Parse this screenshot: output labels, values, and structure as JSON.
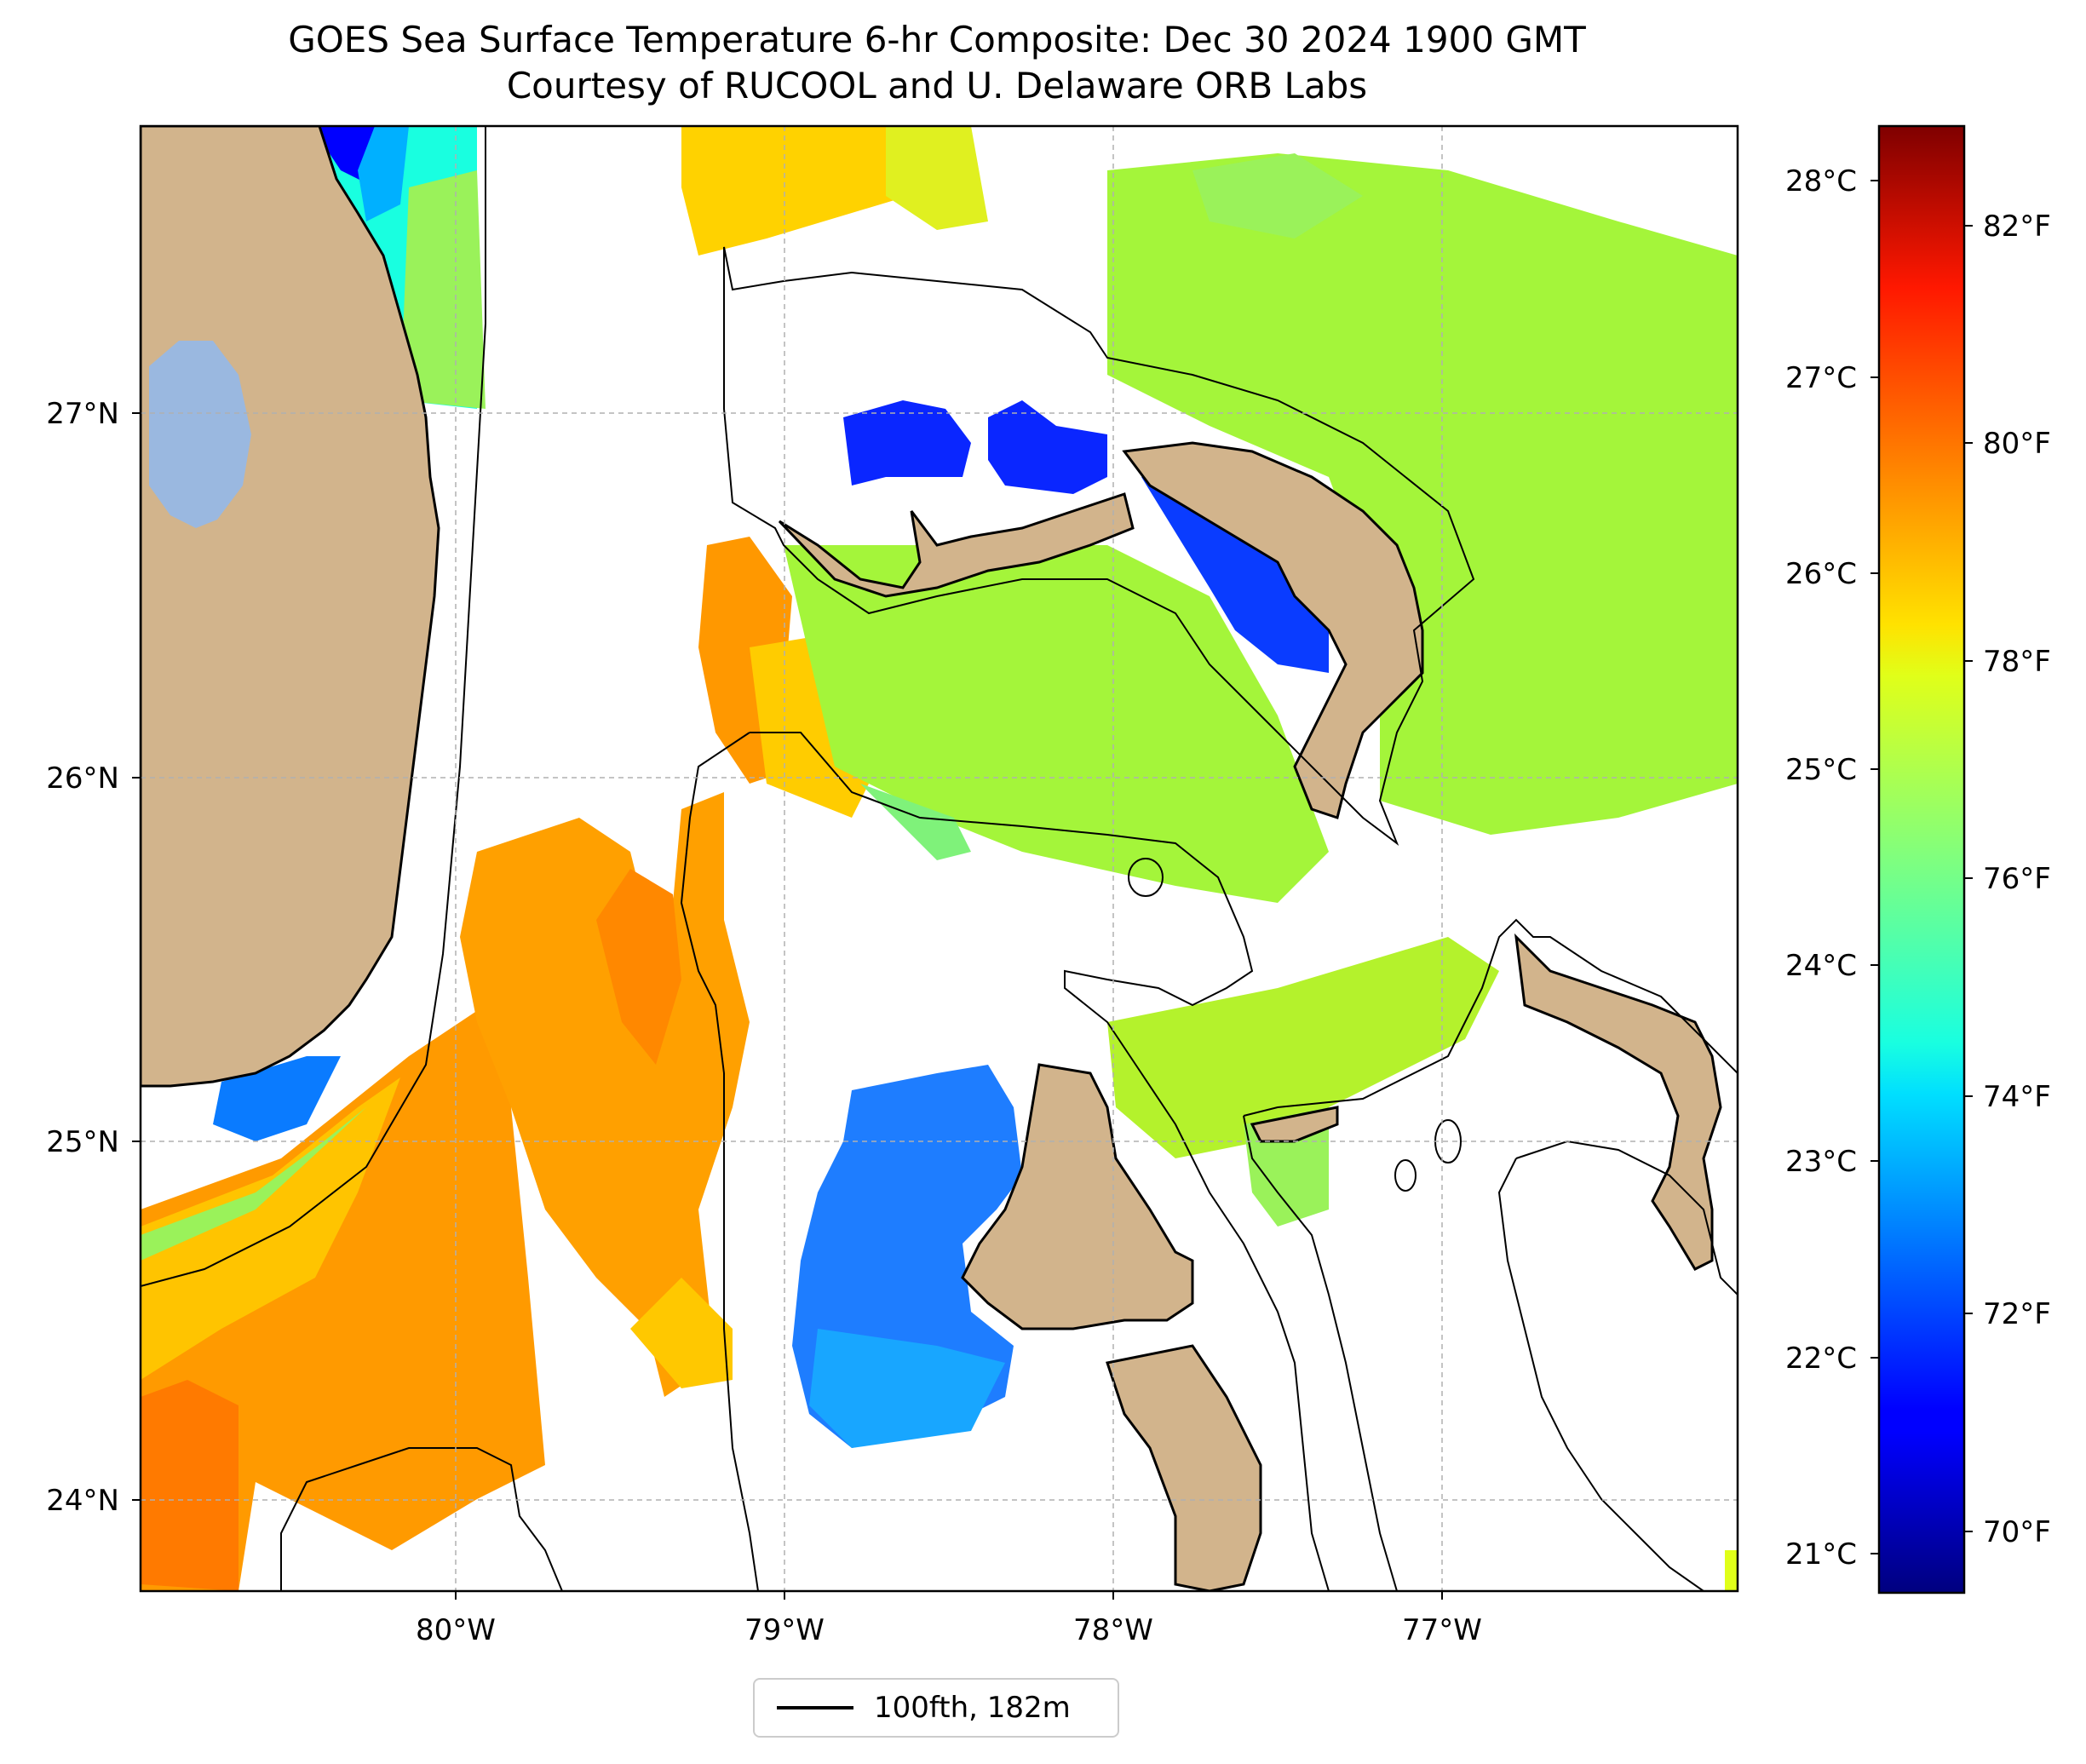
{
  "title": {
    "line1": "GOES Sea Surface Temperature 6-hr Composite: Dec 30 2024 1900 GMT",
    "line2": "Courtesy of RUCOOL and U. Delaware ORB Labs"
  },
  "map": {
    "lon_range": [
      -80.95,
      -76.1
    ],
    "lat_range": [
      23.75,
      27.8
    ],
    "lat_ticks": [
      "27°N",
      "26°N",
      "25°N",
      "24°N"
    ],
    "lon_ticks": [
      "80°W",
      "79°W",
      "78°W",
      "77°W"
    ],
    "land_color": "#d2b48c",
    "lake_color": "#9ab8e0",
    "grid": true,
    "contour_label": "100fth, 182m"
  },
  "colorbar": {
    "colormap": "jet",
    "celsius_ticks": [
      "28°C",
      "27°C",
      "26°C",
      "25°C",
      "24°C",
      "23°C",
      "22°C",
      "21°C"
    ],
    "fahrenheit_ticks": [
      "82°F",
      "80°F",
      "78°F",
      "76°F",
      "74°F",
      "72°F",
      "70°F"
    ],
    "range_f": [
      69.2,
      83.0
    ]
  },
  "legend": {
    "label": "100fth, 182m"
  }
}
